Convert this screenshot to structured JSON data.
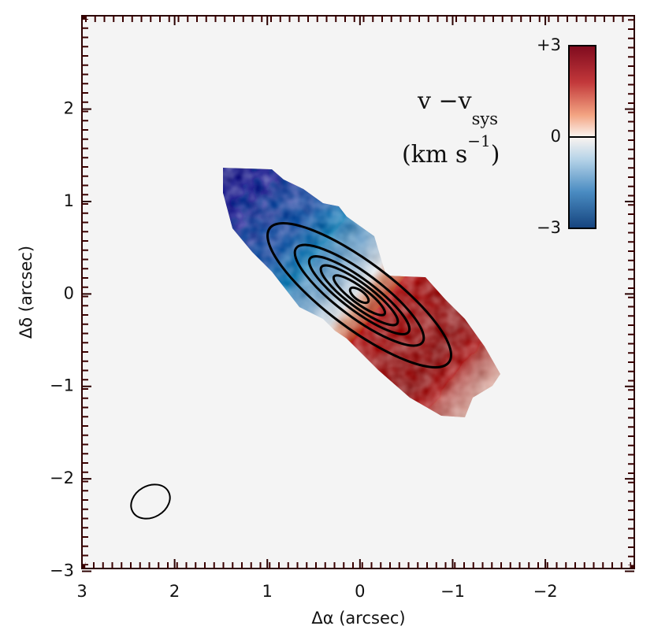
{
  "chart_data": {
    "type": "velocity-map",
    "xlabel": "Δα (arcsec)",
    "ylabel": "Δδ (arcsec)",
    "xlim": [
      3,
      -2.96
    ],
    "ylim": [
      -2.97,
      3.01
    ],
    "xticks": [
      3,
      2,
      1,
      0,
      {
        "value": -1,
        "label": "−1"
      },
      {
        "value": -2,
        "label": "−2"
      }
    ],
    "yticks": [
      {
        "value": -3,
        "label": "−3"
      },
      {
        "value": -2,
        "label": "−2"
      },
      {
        "value": -1,
        "label": "−1"
      },
      0,
      1,
      2
    ],
    "colorbar": {
      "lim": [
        -3,
        3
      ],
      "ticks": [
        {
          "value": -3,
          "label": "−3"
        },
        0,
        {
          "value": 3,
          "label": "+3"
        }
      ],
      "label": {
        "main": "v −v",
        "sub": "sys",
        "unit": "(km s",
        "sup": "−1",
        "close": ")"
      }
    }
  }
}
